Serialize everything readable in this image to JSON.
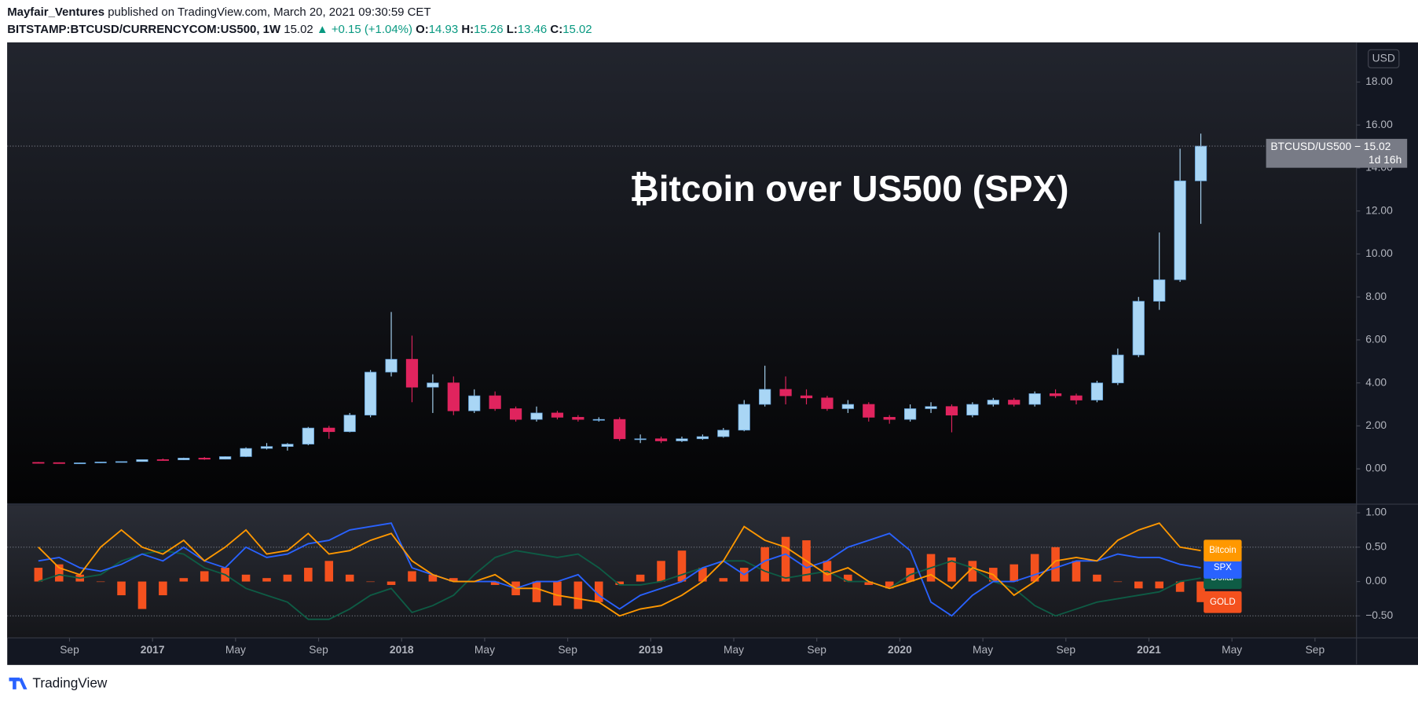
{
  "header": {
    "author": "Mayfair_Ventures",
    "published": "published on TradingView.com, March 20, 2021 09:30:59 CET",
    "symbol": "BITSTAMP:BTCUSD/CURRENCYCOM:US500, 1W",
    "price": "15.02",
    "change": "▲ +0.15 (+1.04%)",
    "o_label": "O:",
    "o": "14.93",
    "h_label": "H:",
    "h": "15.26",
    "l_label": "L:",
    "l": "13.46",
    "c_label": "C:",
    "c": "15.02"
  },
  "footer": "TradingView",
  "chart_data": [
    {
      "type": "candlestick",
      "annotation": "₿itcoin over US500 (SPX)",
      "axis_unit": "USD",
      "price_badge": "BTCUSD/US500 − 15.02",
      "countdown": "1d 16h",
      "up_color": "#a9d6f5",
      "down_color": "#e0245e",
      "x": [
        "2016-07",
        "2016-08",
        "2016-09",
        "2016-10",
        "2016-11",
        "2016-12",
        "2017-01",
        "2017-02",
        "2017-03",
        "2017-04",
        "2017-05",
        "2017-06",
        "2017-07",
        "2017-08",
        "2017-09",
        "2017-10",
        "2017-11",
        "2017-12",
        "2018-01",
        "2018-02",
        "2018-03",
        "2018-04",
        "2018-05",
        "2018-06",
        "2018-07",
        "2018-08",
        "2018-09",
        "2018-10",
        "2018-11",
        "2018-12",
        "2019-01",
        "2019-02",
        "2019-03",
        "2019-04",
        "2019-05",
        "2019-06",
        "2019-07",
        "2019-08",
        "2019-09",
        "2019-10",
        "2019-11",
        "2019-12",
        "2020-01",
        "2020-02",
        "2020-03",
        "2020-04",
        "2020-05",
        "2020-06",
        "2020-07",
        "2020-08",
        "2020-09",
        "2020-10",
        "2020-11",
        "2020-12",
        "2021-01",
        "2021-02",
        "2021-03"
      ],
      "open": [
        0.3,
        0.29,
        0.27,
        0.28,
        0.32,
        0.34,
        0.43,
        0.42,
        0.5,
        0.45,
        0.57,
        0.95,
        1.04,
        1.15,
        1.9,
        1.73,
        2.5,
        4.5,
        5.1,
        3.8,
        4.0,
        2.7,
        3.4,
        2.8,
        2.3,
        2.6,
        2.4,
        2.3,
        2.3,
        1.4,
        1.4,
        1.3,
        1.4,
        1.5,
        1.8,
        3.0,
        3.7,
        3.4,
        3.3,
        2.8,
        3.0,
        2.4,
        2.3,
        2.8,
        2.9,
        2.5,
        3.0,
        3.2,
        3.0,
        3.5,
        3.4,
        3.2,
        4.0,
        5.3,
        7.8,
        8.8,
        13.4
      ],
      "high": [
        0.32,
        0.3,
        0.29,
        0.33,
        0.35,
        0.44,
        0.48,
        0.52,
        0.55,
        0.58,
        1.0,
        1.2,
        1.2,
        1.95,
        2.0,
        2.6,
        4.6,
        7.3,
        6.2,
        4.4,
        4.3,
        3.7,
        3.6,
        2.9,
        2.9,
        2.7,
        2.5,
        2.4,
        2.4,
        1.6,
        1.5,
        1.5,
        1.6,
        1.9,
        3.2,
        4.8,
        4.3,
        3.7,
        3.4,
        3.2,
        3.1,
        2.5,
        3.0,
        3.1,
        3.0,
        3.1,
        3.3,
        3.3,
        3.6,
        3.7,
        3.5,
        4.1,
        5.6,
        8.0,
        11.0,
        14.9,
        15.6
      ],
      "low": [
        0.27,
        0.26,
        0.26,
        0.27,
        0.31,
        0.33,
        0.38,
        0.41,
        0.42,
        0.44,
        0.55,
        0.9,
        0.85,
        1.1,
        1.4,
        1.7,
        2.4,
        4.3,
        3.1,
        2.6,
        2.5,
        2.6,
        2.7,
        2.2,
        2.2,
        2.3,
        2.2,
        2.2,
        1.3,
        1.2,
        1.2,
        1.25,
        1.35,
        1.45,
        1.75,
        2.9,
        3.0,
        3.0,
        2.7,
        2.6,
        2.2,
        2.1,
        2.2,
        2.6,
        1.7,
        2.4,
        2.9,
        2.9,
        2.9,
        3.3,
        3.0,
        3.1,
        3.9,
        5.2,
        7.4,
        8.7,
        11.4
      ],
      "close": [
        0.29,
        0.27,
        0.28,
        0.32,
        0.34,
        0.43,
        0.42,
        0.5,
        0.45,
        0.57,
        0.95,
        1.04,
        1.15,
        1.9,
        1.73,
        2.5,
        4.5,
        5.1,
        3.8,
        4.0,
        2.7,
        3.4,
        2.8,
        2.3,
        2.6,
        2.4,
        2.3,
        2.3,
        1.4,
        1.4,
        1.3,
        1.4,
        1.5,
        1.8,
        3.0,
        3.7,
        3.4,
        3.3,
        2.8,
        3.0,
        2.4,
        2.3,
        2.8,
        2.9,
        2.5,
        3.0,
        3.2,
        3.0,
        3.5,
        3.4,
        3.2,
        4.0,
        5.3,
        7.8,
        8.8,
        13.4,
        15.02
      ],
      "xlim": [
        "2016-06",
        "2021-11"
      ],
      "xticks": [
        {
          "value": "2016-09",
          "label": "Sep"
        },
        {
          "value": "2017-01",
          "label": "2017"
        },
        {
          "value": "2017-05",
          "label": "May"
        },
        {
          "value": "2017-09",
          "label": "Sep"
        },
        {
          "value": "2018-01",
          "label": "2018"
        },
        {
          "value": "2018-05",
          "label": "May"
        },
        {
          "value": "2018-09",
          "label": "Sep"
        },
        {
          "value": "2019-01",
          "label": "2019"
        },
        {
          "value": "2019-05",
          "label": "May"
        },
        {
          "value": "2019-09",
          "label": "Sep"
        },
        {
          "value": "2020-01",
          "label": "2020"
        },
        {
          "value": "2020-05",
          "label": "May"
        },
        {
          "value": "2020-09",
          "label": "Sep"
        },
        {
          "value": "2021-01",
          "label": "2021"
        },
        {
          "value": "2021-05",
          "label": "May"
        },
        {
          "value": "2021-09",
          "label": "Sep"
        }
      ],
      "ylim": [
        -1.6,
        19.8
      ],
      "yticks": [
        {
          "value": 0,
          "label": "0.00"
        },
        {
          "value": 2,
          "label": "2.00"
        },
        {
          "value": 4,
          "label": "4.00"
        },
        {
          "value": 6,
          "label": "6.00"
        },
        {
          "value": 8,
          "label": "8.00"
        },
        {
          "value": 10,
          "label": "10.00"
        },
        {
          "value": 12,
          "label": "12.00"
        },
        {
          "value": 14,
          "label": "14.00"
        },
        {
          "value": 16,
          "label": "16.00"
        },
        {
          "value": 18,
          "label": "18.00"
        }
      ]
    },
    {
      "type": "oscillator",
      "ylim": [
        -0.82,
        1.1
      ],
      "yticks": [
        {
          "value": 1,
          "label": "1.00"
        },
        {
          "value": 0.5,
          "label": "0.50"
        },
        {
          "value": 0,
          "label": "0.00"
        },
        {
          "value": -0.5,
          "label": "−0.50"
        }
      ],
      "grid_lines": [
        0.5,
        -0.5
      ],
      "series": [
        {
          "name": "GOLD",
          "color": "#f4511e",
          "style": "histogram",
          "values": [
            0.2,
            0.25,
            0.1,
            0.0,
            -0.2,
            -0.4,
            -0.2,
            0.05,
            0.15,
            0.2,
            0.1,
            0.05,
            0.1,
            0.2,
            0.3,
            0.1,
            0.0,
            -0.05,
            0.15,
            0.1,
            0.05,
            0.0,
            -0.05,
            -0.2,
            -0.3,
            -0.35,
            -0.4,
            -0.3,
            -0.05,
            0.1,
            0.3,
            0.45,
            0.2,
            0.05,
            0.2,
            0.5,
            0.65,
            0.6,
            0.3,
            0.1,
            -0.05,
            -0.1,
            0.2,
            0.4,
            0.35,
            0.3,
            0.2,
            0.25,
            0.4,
            0.5,
            0.3,
            0.1,
            0.0,
            -0.1,
            -0.1,
            -0.15,
            -0.3
          ]
        },
        {
          "name": "Dollar",
          "color": "#0e5c45",
          "style": "line",
          "values": [
            0.0,
            0.1,
            0.05,
            0.1,
            0.3,
            0.4,
            0.45,
            0.4,
            0.2,
            0.1,
            -0.1,
            -0.2,
            -0.3,
            -0.55,
            -0.55,
            -0.4,
            -0.2,
            -0.1,
            -0.45,
            -0.35,
            -0.2,
            0.1,
            0.35,
            0.45,
            0.4,
            0.35,
            0.4,
            0.2,
            -0.05,
            -0.05,
            0.0,
            0.1,
            0.2,
            0.3,
            0.3,
            0.15,
            0.05,
            0.1,
            0.15,
            0.0,
            0.0,
            -0.1,
            0.1,
            0.2,
            0.3,
            0.2,
            0.0,
            -0.1,
            -0.35,
            -0.5,
            -0.4,
            -0.3,
            -0.25,
            -0.2,
            -0.15,
            0.0,
            0.05
          ]
        },
        {
          "name": "SPX",
          "color": "#2962ff",
          "style": "line",
          "values": [
            0.3,
            0.35,
            0.2,
            0.15,
            0.25,
            0.4,
            0.3,
            0.5,
            0.3,
            0.2,
            0.5,
            0.35,
            0.4,
            0.55,
            0.6,
            0.75,
            0.8,
            0.85,
            0.2,
            0.1,
            0.0,
            0.0,
            0.0,
            -0.1,
            0.0,
            0.0,
            0.1,
            -0.2,
            -0.4,
            -0.2,
            -0.1,
            0.0,
            0.2,
            0.3,
            0.1,
            0.3,
            0.4,
            0.2,
            0.3,
            0.5,
            0.6,
            0.7,
            0.45,
            -0.3,
            -0.5,
            -0.2,
            0.0,
            0.0,
            0.1,
            0.2,
            0.3,
            0.3,
            0.4,
            0.35,
            0.35,
            0.25,
            0.2
          ]
        },
        {
          "name": "Bitcoin",
          "color": "#ff9800",
          "style": "line",
          "values": [
            0.5,
            0.2,
            0.1,
            0.5,
            0.75,
            0.5,
            0.4,
            0.6,
            0.3,
            0.5,
            0.75,
            0.4,
            0.45,
            0.7,
            0.4,
            0.45,
            0.6,
            0.7,
            0.3,
            0.1,
            0.0,
            0.0,
            0.1,
            -0.1,
            -0.1,
            -0.2,
            -0.25,
            -0.3,
            -0.5,
            -0.4,
            -0.35,
            -0.2,
            0.0,
            0.3,
            0.8,
            0.6,
            0.5,
            0.3,
            0.1,
            0.2,
            0.0,
            -0.1,
            0.0,
            0.1,
            -0.1,
            0.2,
            0.1,
            -0.2,
            0.0,
            0.3,
            0.35,
            0.3,
            0.6,
            0.75,
            0.85,
            0.5,
            0.45
          ]
        }
      ]
    }
  ]
}
